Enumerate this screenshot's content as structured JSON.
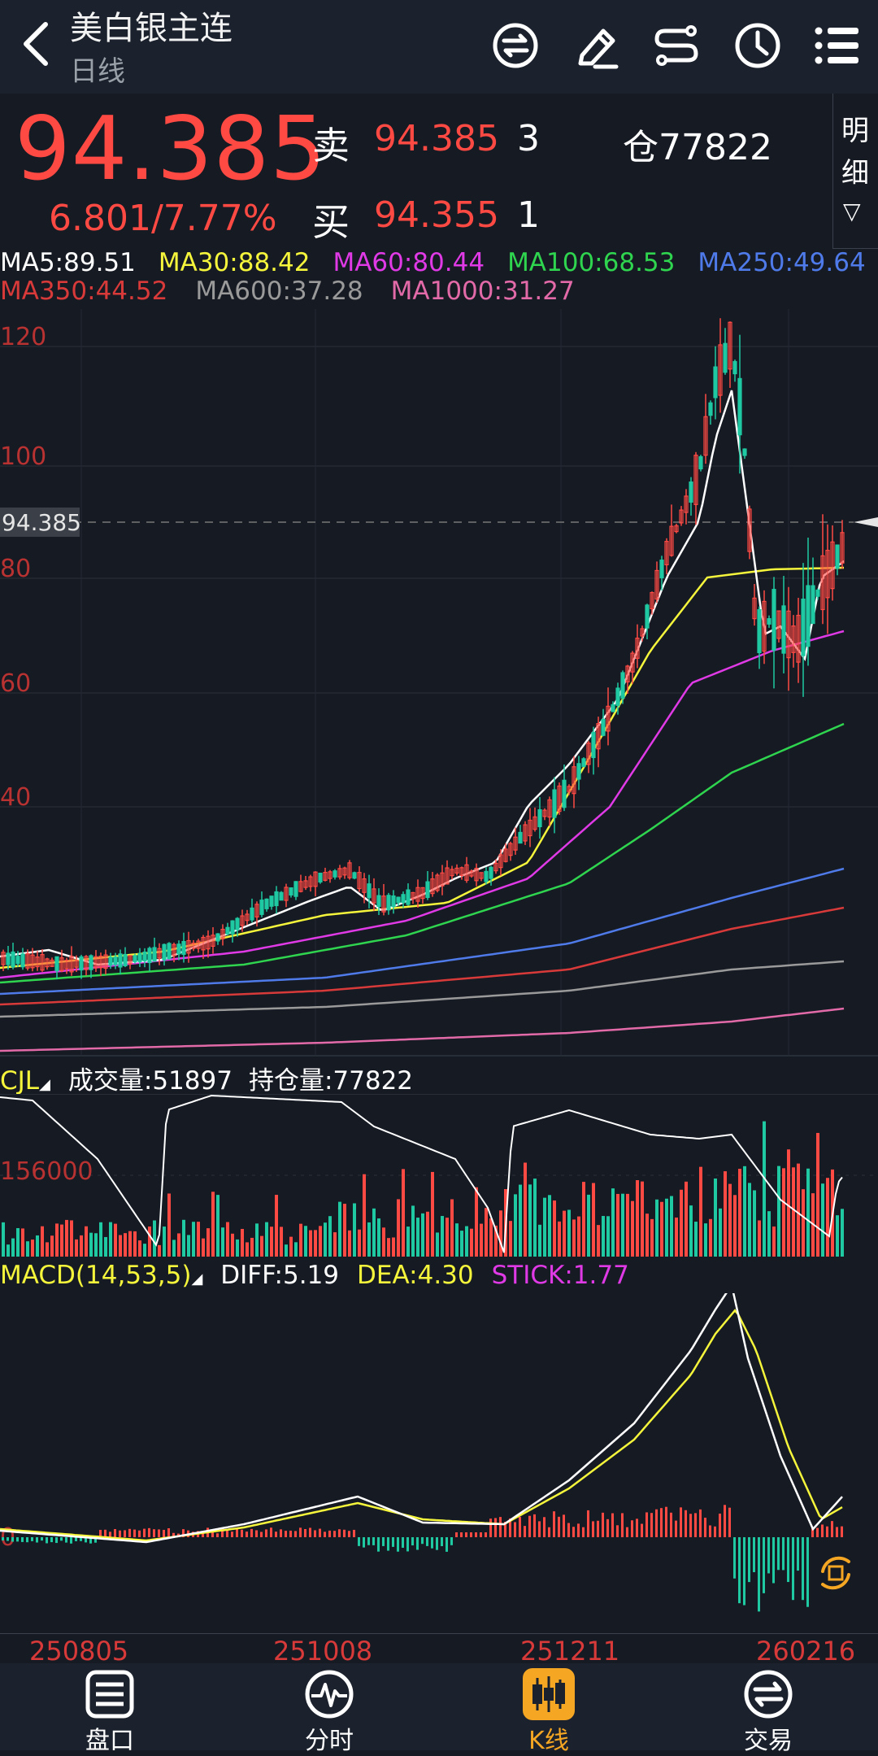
{
  "header": {
    "title": "美白银主连",
    "period": "日线",
    "icons": [
      "swap-icon",
      "pencil-icon",
      "route-icon",
      "clock-icon",
      "menu-icon"
    ]
  },
  "quote": {
    "last": "94.385",
    "change": "6.801/7.77%",
    "sell_label": "卖",
    "sell_price": "94.385",
    "sell_qty": "3",
    "buy_label": "买",
    "buy_price": "94.355",
    "buy_qty": "1",
    "open_interest": "仓77822",
    "detail_label_1": "明",
    "detail_label_2": "细",
    "detail_arrow": "▽"
  },
  "ma": {
    "row1": [
      {
        "text": "MA5:89.51",
        "color": "#ffffff"
      },
      {
        "text": "MA30:88.42",
        "color": "#f5f53c"
      },
      {
        "text": "MA60:80.44",
        "color": "#e03ae6"
      },
      {
        "text": "MA100:68.53",
        "color": "#2fd44f"
      },
      {
        "text": "MA250:49.64",
        "color": "#4f7bea"
      }
    ],
    "row2": [
      {
        "text": "MA350:44.52",
        "color": "#d83a3a"
      },
      {
        "text": "MA600:37.28",
        "color": "#9a9a9a"
      },
      {
        "text": "MA1000:31.27",
        "color": "#e26aa8"
      }
    ]
  },
  "main_axis": {
    "labels": [
      "120",
      "100",
      "80",
      "60",
      "40"
    ],
    "current_price_tag": "94.385"
  },
  "volume_panel": {
    "indicator": "CJL",
    "volume_label": "成交量:51897",
    "oi_label": "持仓量:77822",
    "axis_label": "156000"
  },
  "macd_panel": {
    "indicator": "MACD(14,53,5)",
    "diff": "DIFF:5.19",
    "dea": "DEA:4.30",
    "stick": "STICK:1.77",
    "zero_label": "0"
  },
  "dates": [
    "250805",
    "251008",
    "251211",
    "260216"
  ],
  "tabs": [
    {
      "label": "盘口",
      "icon": "list-icon",
      "active": false
    },
    {
      "label": "分时",
      "icon": "pulse-icon",
      "active": false
    },
    {
      "label": "K线",
      "icon": "candle-icon",
      "active": true
    },
    {
      "label": "交易",
      "icon": "trade-icon",
      "active": false
    }
  ],
  "colors": {
    "up": "#ff4a44",
    "down": "#1fc9a2",
    "accent": "#f5a623",
    "background": "#161a23"
  }
}
